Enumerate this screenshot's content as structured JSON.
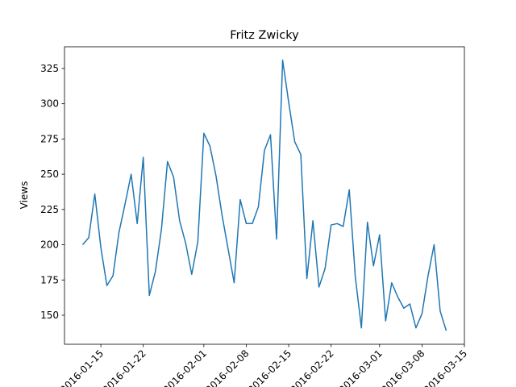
{
  "chart_data": {
    "type": "line",
    "title": "Fritz Zwicky",
    "ylabel": "Views",
    "x": [
      "2016-01-12",
      "2016-01-13",
      "2016-01-14",
      "2016-01-15",
      "2016-01-16",
      "2016-01-17",
      "2016-01-18",
      "2016-01-19",
      "2016-01-20",
      "2016-01-21",
      "2016-01-22",
      "2016-01-23",
      "2016-01-24",
      "2016-01-25",
      "2016-01-26",
      "2016-01-27",
      "2016-01-28",
      "2016-01-29",
      "2016-01-30",
      "2016-01-31",
      "2016-02-01",
      "2016-02-02",
      "2016-02-03",
      "2016-02-04",
      "2016-02-05",
      "2016-02-06",
      "2016-02-07",
      "2016-02-08",
      "2016-02-09",
      "2016-02-10",
      "2016-02-11",
      "2016-02-12",
      "2016-02-13",
      "2016-02-14",
      "2016-02-15",
      "2016-02-16",
      "2016-02-17",
      "2016-02-18",
      "2016-02-19",
      "2016-02-20",
      "2016-02-21",
      "2016-02-22",
      "2016-02-23",
      "2016-02-24",
      "2016-02-25",
      "2016-02-26",
      "2016-02-27",
      "2016-02-28",
      "2016-02-29",
      "2016-03-01",
      "2016-03-02",
      "2016-03-03",
      "2016-03-04",
      "2016-03-05",
      "2016-03-06",
      "2016-03-07",
      "2016-03-08",
      "2016-03-09",
      "2016-03-10",
      "2016-03-11",
      "2016-03-12"
    ],
    "series": [
      {
        "name": "Views",
        "color": "#1f77b4",
        "values": [
          200,
          205,
          236,
          198,
          171,
          178,
          209,
          229,
          250,
          215,
          262,
          164,
          181,
          211,
          259,
          248,
          217,
          201,
          179,
          202,
          279,
          270,
          249,
          221,
          197,
          173,
          232,
          215,
          215,
          227,
          267,
          278,
          204,
          331,
          301,
          273,
          264,
          176,
          217,
          170,
          183,
          214,
          215,
          213,
          239,
          177,
          141,
          216,
          185,
          207,
          146,
          173,
          163,
          155,
          158,
          141,
          151,
          178,
          200,
          153,
          139
        ]
      }
    ],
    "xlim": [
      "2016-01-09",
      "2016-03-15"
    ],
    "xticks": [
      "2016-01-15",
      "2016-01-22",
      "2016-02-01",
      "2016-02-08",
      "2016-02-15",
      "2016-02-22",
      "2016-03-01",
      "2016-03-08",
      "2016-03-15"
    ],
    "ylim": [
      129.4,
      340.4
    ],
    "yticks": [
      150,
      175,
      200,
      225,
      250,
      275,
      300,
      325
    ]
  }
}
